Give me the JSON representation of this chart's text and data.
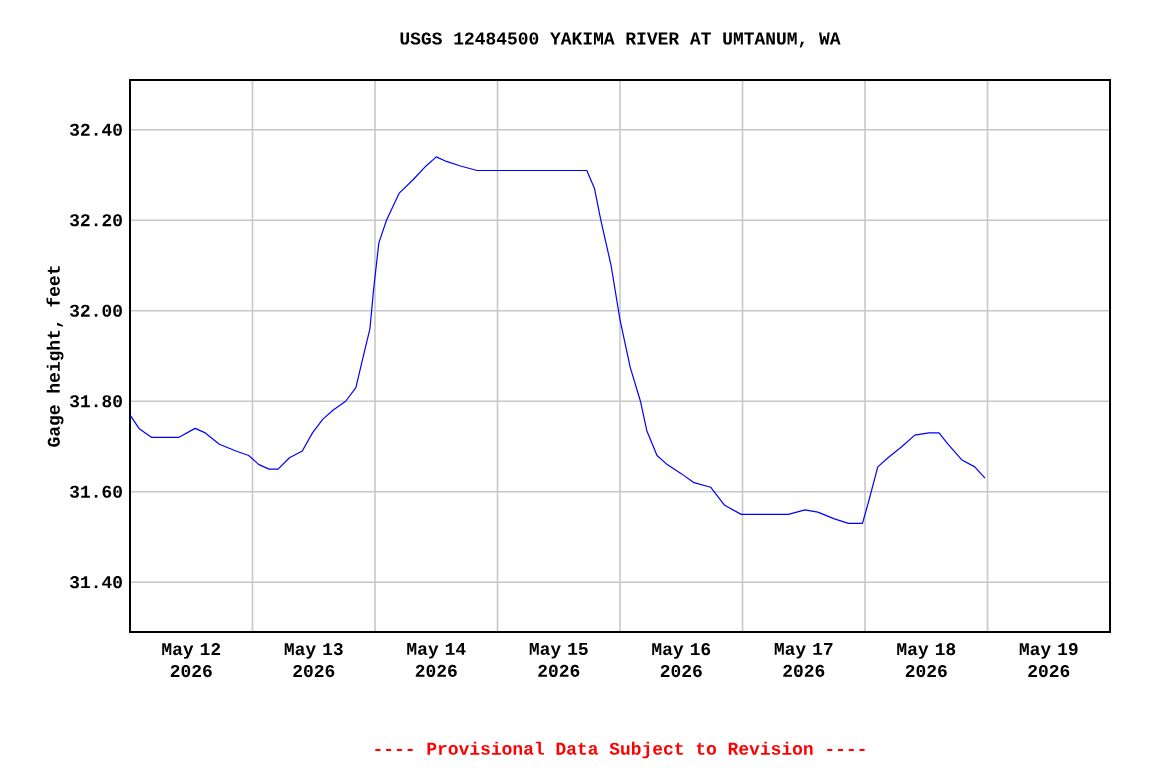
{
  "chart_data": {
    "type": "line",
    "title": "USGS 12484500 YAKIMA RIVER AT UMTANUM, WA",
    "ylabel": "Gage height, feet",
    "annotations": [
      "---- Provisional Data Subject to Revision ----"
    ],
    "x": [
      "2026-05-12T00:00",
      "2026-05-12T01:45",
      "2026-05-12T04:15",
      "2026-05-12T09:30",
      "2026-05-12T12:45",
      "2026-05-12T14:45",
      "2026-05-12T17:30",
      "2026-05-12T20:45",
      "2026-05-12T23:15",
      "2026-05-13T01:15",
      "2026-05-13T03:15",
      "2026-05-13T05:00",
      "2026-05-13T07:15",
      "2026-05-13T09:45",
      "2026-05-13T11:45",
      "2026-05-13T13:45",
      "2026-05-13T15:45",
      "2026-05-13T18:15",
      "2026-05-13T20:15",
      "2026-05-13T21:30",
      "2026-05-13T23:00",
      "2026-05-13T23:45",
      "2026-05-14T00:45",
      "2026-05-14T02:15",
      "2026-05-14T04:45",
      "2026-05-14T07:30",
      "2026-05-14T10:00",
      "2026-05-14T12:00",
      "2026-05-14T14:00",
      "2026-05-14T16:45",
      "2026-05-14T20:00",
      "2026-05-15T04:30",
      "2026-05-15T17:30",
      "2026-05-15T19:00",
      "2026-05-15T20:15",
      "2026-05-15T22:15",
      "2026-05-16T00:00",
      "2026-05-16T02:00",
      "2026-05-16T04:00",
      "2026-05-16T05:15",
      "2026-05-16T07:15",
      "2026-05-16T09:15",
      "2026-05-16T12:00",
      "2026-05-16T14:30",
      "2026-05-16T17:45",
      "2026-05-16T20:30",
      "2026-05-16T23:45",
      "2026-05-17T09:00",
      "2026-05-17T12:15",
      "2026-05-17T14:45",
      "2026-05-17T18:00",
      "2026-05-17T20:45",
      "2026-05-17T23:30",
      "2026-05-18T00:45",
      "2026-05-18T02:30",
      "2026-05-18T04:30",
      "2026-05-18T07:15",
      "2026-05-18T09:45",
      "2026-05-18T12:30",
      "2026-05-18T14:30",
      "2026-05-18T16:15",
      "2026-05-18T19:00",
      "2026-05-18T21:30",
      "2026-05-18T23:30"
    ],
    "series": [
      {
        "color": "#0000ff",
        "values": [
          31.77,
          31.74,
          31.72,
          31.72,
          31.74,
          31.73,
          31.705,
          31.69,
          31.68,
          31.66,
          31.65,
          31.65,
          31.675,
          31.69,
          31.73,
          31.76,
          31.78,
          31.8,
          31.83,
          31.89,
          31.96,
          32.05,
          32.15,
          32.2,
          32.26,
          32.29,
          32.32,
          32.34,
          32.33,
          32.32,
          32.31,
          32.31,
          32.31,
          32.27,
          32.2,
          32.1,
          31.98,
          31.875,
          31.8,
          31.735,
          31.68,
          31.66,
          31.64,
          31.62,
          31.61,
          31.57,
          31.55,
          31.55,
          31.56,
          31.555,
          31.54,
          31.53,
          31.53,
          31.58,
          31.655,
          31.675,
          31.7,
          31.725,
          31.73,
          31.73,
          31.705,
          31.67,
          31.655,
          31.63
        ]
      }
    ],
    "xlim": [
      "2026-05-12T00:00",
      "2026-05-20T00:00"
    ],
    "xticks": [
      {
        "value": "2026-05-12T12:00",
        "label": "May 12 2026"
      },
      {
        "value": "2026-05-13T00:00",
        "label": null
      },
      {
        "value": "2026-05-13T12:00",
        "label": "May 13 2026"
      },
      {
        "value": "2026-05-14T00:00",
        "label": null
      },
      {
        "value": "2026-05-14T12:00",
        "label": "May 14 2026"
      },
      {
        "value": "2026-05-15T00:00",
        "label": null
      },
      {
        "value": "2026-05-15T12:00",
        "label": "May 15 2026"
      },
      {
        "value": "2026-05-16T00:00",
        "label": null
      },
      {
        "value": "2026-05-16T12:00",
        "label": "May 16 2026"
      },
      {
        "value": "2026-05-17T00:00",
        "label": null
      },
      {
        "value": "2026-05-17T12:00",
        "label": "May 17 2026"
      },
      {
        "value": "2026-05-18T00:00",
        "label": null
      },
      {
        "value": "2026-05-18T12:00",
        "label": "May 18 2026"
      },
      {
        "value": "2026-05-19T00:00",
        "label": null
      },
      {
        "value": "2026-05-19T12:00",
        "label": "May 19 2026"
      }
    ],
    "ylim": [
      31.29,
      32.51
    ],
    "yticks": [
      {
        "value": 31.4,
        "label": "31.40"
      },
      {
        "value": 31.6,
        "label": "31.60"
      },
      {
        "value": 31.8,
        "label": "31.80"
      },
      {
        "value": 32.0,
        "label": "32.00"
      },
      {
        "value": 32.2,
        "label": "32.20"
      },
      {
        "value": 32.4,
        "label": "32.40"
      }
    ],
    "grid": true,
    "marker": "none",
    "line_style": "solid",
    "legend": false
  }
}
